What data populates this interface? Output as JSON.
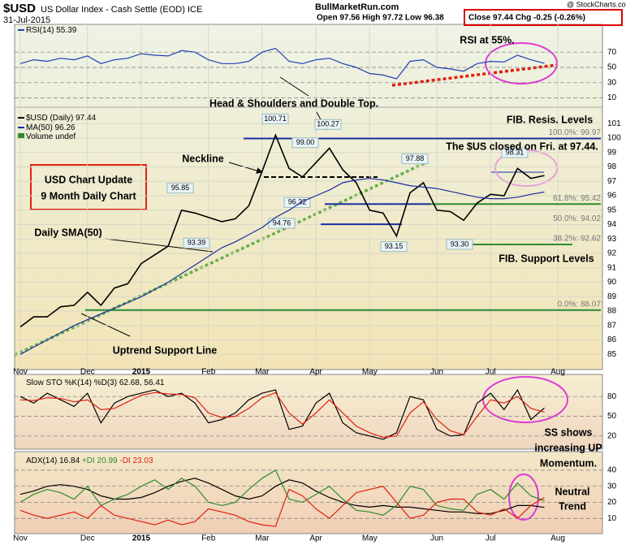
{
  "header": {
    "symbol": "$USD",
    "name": "US Dollar Index - Cash Settle (EOD) ICE",
    "date": "31-Jul-2015",
    "site": "BullMarketRun.com",
    "ohl": "Open 97.56  High 97.72  Low 96.38",
    "close": "Close 97.44  Chg -0.25 (-0.26%)",
    "credit": "@ StockCharts.com"
  },
  "chart_data": [
    {
      "type": "line",
      "categories": [
        "Nov",
        null,
        null,
        null,
        null,
        "Dec",
        null,
        null,
        null,
        "2015",
        null,
        null,
        null,
        null,
        "Feb",
        null,
        null,
        null,
        "Mar",
        null,
        null,
        null,
        "Apr",
        null,
        null,
        null,
        "May",
        null,
        null,
        null,
        null,
        "Jun",
        null,
        null,
        null,
        "Jul",
        null,
        null,
        null,
        null,
        "Aug"
      ],
      "series": [
        {
          "name": "$USD (Daily) 97.44",
          "color": "#000000",
          "values": [
            86.9,
            87.6,
            87.6,
            88.3,
            88.4,
            89.3,
            88.4,
            89.6,
            89.9,
            91.3,
            91.9,
            92.5,
            95.0,
            94.8,
            94.5,
            94.2,
            94.4,
            95.3,
            97.7,
            100.2,
            97.9,
            97.3,
            98.3,
            99.3,
            97.8,
            96.9,
            95.0,
            94.8,
            93.2,
            96.2,
            96.9,
            95.0,
            94.9,
            94.3,
            95.5,
            96.1,
            96.0,
            97.9,
            97.2,
            97.4,
            null
          ]
        },
        {
          "name": "MA(50) 96.26",
          "color": "#1a2fa0",
          "values": [
            85.0,
            85.5,
            86.0,
            86.5,
            87.0,
            87.4,
            87.8,
            88.2,
            88.6,
            89.0,
            89.5,
            90.0,
            90.6,
            91.2,
            91.8,
            92.4,
            92.8,
            93.3,
            93.8,
            94.5,
            95.0,
            95.6,
            96.0,
            96.4,
            96.9,
            97.1,
            97.2,
            97.1,
            96.9,
            96.7,
            96.6,
            96.5,
            96.3,
            96.1,
            95.9,
            95.8,
            95.8,
            95.9,
            96.1,
            96.26,
            null
          ]
        }
      ],
      "legend_extra": "Volume undef",
      "ylim": [
        84,
        102
      ],
      "yticks": [
        85,
        86,
        87,
        88,
        89,
        90,
        91,
        92,
        93,
        94,
        95,
        96,
        97,
        98,
        99,
        100,
        101
      ],
      "grid": true,
      "fib_levels": [
        {
          "value": 99.97,
          "label": "100.0%: 99.97"
        },
        {
          "value": 95.42,
          "label": "61.8%: 95.42"
        },
        {
          "value": 94.02,
          "label": "50.0%: 94.02"
        },
        {
          "value": 92.62,
          "label": "38.2%: 92.62"
        },
        {
          "value": 88.07,
          "label": "0.0%: 88.07"
        }
      ],
      "point_labels": [
        {
          "value": 100.71,
          "label": "100.71"
        },
        {
          "value": 99.0,
          "label": "99.00"
        },
        {
          "value": 100.27,
          "label": "100.27"
        },
        {
          "value": 97.88,
          "label": "97.88"
        },
        {
          "value": 98.31,
          "label": "98.31"
        },
        {
          "value": 95.85,
          "label": "95.85"
        },
        {
          "value": 96.32,
          "label": "96.32"
        },
        {
          "value": 94.76,
          "label": "94.76"
        },
        {
          "value": 93.39,
          "label": "93.39"
        },
        {
          "value": 93.15,
          "label": "93.15"
        },
        {
          "value": 93.3,
          "label": "93.30"
        }
      ],
      "annotations": [
        [
          "RSI at 55%."
        ],
        [
          "Head & Shoulders and Double Top."
        ],
        [
          "FIB. Resis. Levels"
        ],
        [
          "The $US closed on Fri. at 97.44."
        ],
        [
          "Neckline"
        ],
        [
          "USD Chart Update",
          "9 Month Daily Chart"
        ],
        [
          "Daily SMA(50)"
        ],
        [
          "Uptrend Support Line"
        ],
        [
          "FIB. Support Levels"
        ]
      ]
    },
    {
      "type": "line",
      "series": [
        {
          "name": "RSI(14) 55.39",
          "color": "#1f3fb5",
          "values": [
            55,
            60,
            58,
            62,
            60,
            65,
            55,
            60,
            62,
            68,
            66,
            65,
            72,
            70,
            60,
            55,
            55,
            58,
            70,
            75,
            58,
            55,
            60,
            62,
            55,
            50,
            42,
            40,
            35,
            58,
            60,
            50,
            48,
            45,
            55,
            58,
            57,
            66,
            60,
            55.39,
            null
          ]
        }
      ],
      "ylim": [
        0,
        100
      ],
      "yticks": [
        10,
        30,
        50,
        70
      ],
      "grid": true,
      "annotations": []
    },
    {
      "type": "line",
      "title": "Slow STO %K(14) %D(3) 62.68, 56.41",
      "series": [
        {
          "color": "#000000",
          "values": [
            80,
            70,
            85,
            75,
            65,
            85,
            40,
            70,
            80,
            85,
            90,
            80,
            85,
            70,
            40,
            45,
            55,
            75,
            85,
            90,
            30,
            35,
            70,
            85,
            40,
            25,
            20,
            15,
            25,
            80,
            75,
            30,
            20,
            22,
            70,
            85,
            60,
            90,
            45,
            62.68,
            null
          ]
        },
        {
          "color": "#e02010",
          "values": [
            75,
            74,
            78,
            77,
            72,
            75,
            60,
            62,
            72,
            82,
            86,
            84,
            83,
            78,
            55,
            48,
            50,
            62,
            78,
            86,
            55,
            38,
            55,
            75,
            55,
            35,
            25,
            18,
            20,
            55,
            72,
            45,
            28,
            22,
            50,
            75,
            70,
            80,
            62,
            56.41,
            null
          ]
        }
      ],
      "ylim": [
        0,
        100
      ],
      "yticks": [
        20,
        50,
        80
      ],
      "grid": true,
      "annotations": [
        [
          "SS shows",
          "increasing UP",
          "Momentum."
        ]
      ]
    },
    {
      "type": "line",
      "series": [
        {
          "name": "ADX(14) 16.84",
          "color": "#000000",
          "values": [
            25,
            27,
            30,
            31,
            30,
            28,
            24,
            22,
            22,
            23,
            26,
            30,
            33,
            35,
            32,
            28,
            24,
            22,
            24,
            30,
            34,
            32,
            27,
            23,
            20,
            18,
            17,
            18,
            17,
            17,
            16,
            15,
            14,
            14,
            13,
            13,
            15,
            18,
            18,
            16.84,
            null
          ]
        },
        {
          "name": "+DI 20.99",
          "color": "#2e8b2e",
          "values": [
            20,
            25,
            28,
            26,
            22,
            30,
            18,
            22,
            25,
            30,
            34,
            28,
            35,
            30,
            20,
            18,
            20,
            28,
            35,
            40,
            22,
            20,
            25,
            30,
            22,
            15,
            14,
            12,
            18,
            30,
            28,
            18,
            16,
            15,
            25,
            28,
            22,
            32,
            24,
            20.99,
            null
          ]
        },
        {
          "name": "-DI 23.03",
          "color": "#e02010",
          "values": [
            15,
            12,
            10,
            12,
            14,
            10,
            18,
            12,
            10,
            8,
            6,
            9,
            6,
            8,
            16,
            14,
            12,
            8,
            6,
            5,
            28,
            24,
            16,
            10,
            18,
            26,
            28,
            30,
            20,
            10,
            12,
            20,
            22,
            22,
            14,
            12,
            16,
            10,
            18,
            23.03,
            null
          ]
        }
      ],
      "ylim": [
        0,
        45
      ],
      "yticks": [
        10,
        20,
        30,
        40
      ],
      "grid": true,
      "annotations": [
        [
          "Neutral",
          "Trend"
        ]
      ]
    }
  ]
}
